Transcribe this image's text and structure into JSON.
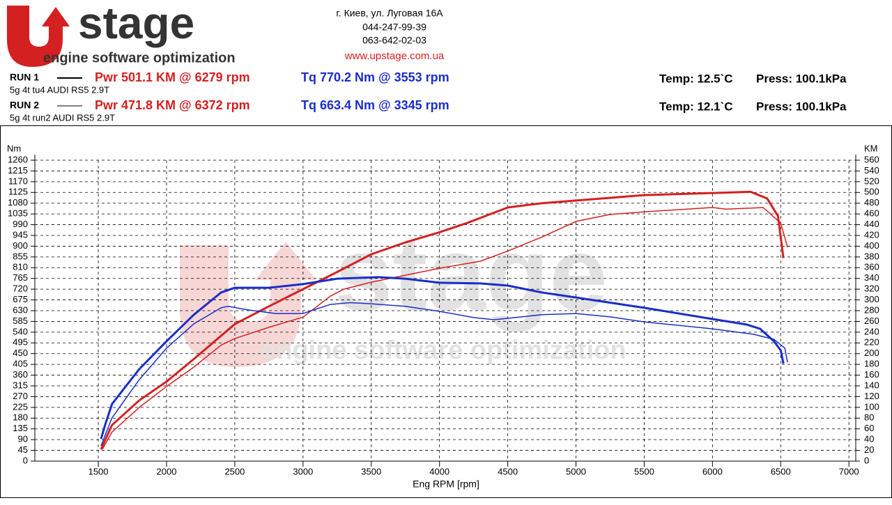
{
  "header": {
    "logo": "stage",
    "tagline": "engine software optimization",
    "address": [
      "г. Киев, ул. Луговая 16А",
      "044-247-99-39",
      "063-642-02-03"
    ],
    "url": "www.upstage.com.ua",
    "runs": [
      {
        "run": "RUN 1",
        "desc": "5g 4t tu4 AUDI RS5 2.9T",
        "power": "Pwr  501.1 KM @ 6279 rpm",
        "torque": "Tq 770.2 Nm @ 3553 rpm",
        "temp": "Temp: 12.5`C",
        "press": "Press: 100.1kPa"
      },
      {
        "run": "RUN 2",
        "desc": "5g 4t run2 AUDI RS5 2.9T",
        "power": "Pwr  471.8 KM @ 6372 rpm",
        "torque": "Tq 663.4 Nm @ 3345 rpm",
        "temp": "Temp: 12.1`C",
        "press": "Press: 100.1kPa"
      }
    ]
  },
  "chart_data": {
    "type": "line",
    "watermark": {
      "logo": "stage",
      "tagline": "engine software optimization"
    },
    "x_label": "Eng RPM [rpm]",
    "y_label": "Nm",
    "y2_label": "KM",
    "grid": true,
    "xlim": [
      1035,
      7050
    ],
    "xticks": [
      1500,
      2000,
      2500,
      3000,
      3500,
      4000,
      4500,
      5000,
      5500,
      6000,
      6500,
      7000
    ],
    "ylim": [
      0,
      1260
    ],
    "yticks": [
      0,
      45,
      90,
      135,
      180,
      225,
      270,
      315,
      360,
      405,
      450,
      495,
      540,
      585,
      630,
      675,
      720,
      765,
      810,
      855,
      900,
      945,
      990,
      1035,
      1080,
      1125,
      1170,
      1215,
      1260
    ],
    "y2lim": [
      0,
      560
    ],
    "y2ticks": [
      0,
      20,
      40,
      60,
      80,
      100,
      120,
      140,
      160,
      180,
      200,
      220,
      240,
      260,
      280,
      300,
      320,
      340,
      360,
      380,
      400,
      420,
      440,
      460,
      480,
      500,
      520,
      540,
      560
    ],
    "series": [
      {
        "color": "#d42020",
        "width": 3,
        "axis": "y2",
        "x": [
          1520,
          1600,
          1800,
          2000,
          2200,
          2500,
          2750,
          3000,
          3250,
          3500,
          3750,
          4000,
          4200,
          4500,
          4750,
          5000,
          5500,
          6000,
          6279,
          6400,
          6480,
          6520
        ],
        "values": [
          22,
          67,
          113,
          148,
          190,
          255,
          288,
          320,
          352,
          385,
          407,
          426,
          443,
          472,
          480,
          485,
          495,
          499,
          501.1,
          489,
          456,
          378
        ]
      },
      {
        "color": "#d42020",
        "width": 1.5,
        "axis": "y2",
        "x": [
          1530,
          1600,
          1800,
          2000,
          2200,
          2400,
          2500,
          2750,
          3000,
          3200,
          3300,
          3500,
          3750,
          4000,
          4300,
          4500,
          4750,
          5000,
          5250,
          5500,
          6000,
          6100,
          6372,
          6500,
          6550
        ],
        "values": [
          22,
          54,
          100,
          139,
          175,
          216,
          228,
          249,
          268,
          307,
          320,
          333,
          346,
          359,
          372,
          391,
          417,
          446,
          459,
          464,
          472,
          469,
          471.8,
          443,
          398
        ]
      },
      {
        "color": "#1a2ec8",
        "width": 3,
        "axis": "y",
        "x": [
          1520,
          1550,
          1600,
          1700,
          1800,
          2000,
          2200,
          2400,
          2500,
          2750,
          3000,
          3250,
          3553,
          3750,
          4000,
          4300,
          4500,
          4750,
          5000,
          5500,
          6000,
          6250,
          6350,
          6450,
          6500,
          6520
        ],
        "values": [
          93,
          152,
          239,
          312,
          385,
          502,
          613,
          706,
          726,
          726,
          741,
          764,
          770.2,
          764,
          747,
          744,
          735,
          706,
          685,
          642,
          595,
          572,
          554,
          502,
          464,
          408
        ]
      },
      {
        "color": "#1a2ec8",
        "width": 1.5,
        "axis": "y",
        "x": [
          1520,
          1550,
          1600,
          1800,
          2000,
          2200,
          2400,
          2450,
          2600,
          2800,
          3000,
          3200,
          3345,
          3500,
          3750,
          4000,
          4250,
          4400,
          4750,
          5000,
          5250,
          5500,
          6000,
          6300,
          6450,
          6530,
          6550
        ],
        "values": [
          64,
          108,
          181,
          341,
          473,
          575,
          642,
          648,
          633,
          618,
          618,
          656,
          663.4,
          659,
          648,
          627,
          601,
          592,
          613,
          618,
          604,
          583,
          554,
          531,
          510,
          473,
          414
        ]
      }
    ]
  }
}
